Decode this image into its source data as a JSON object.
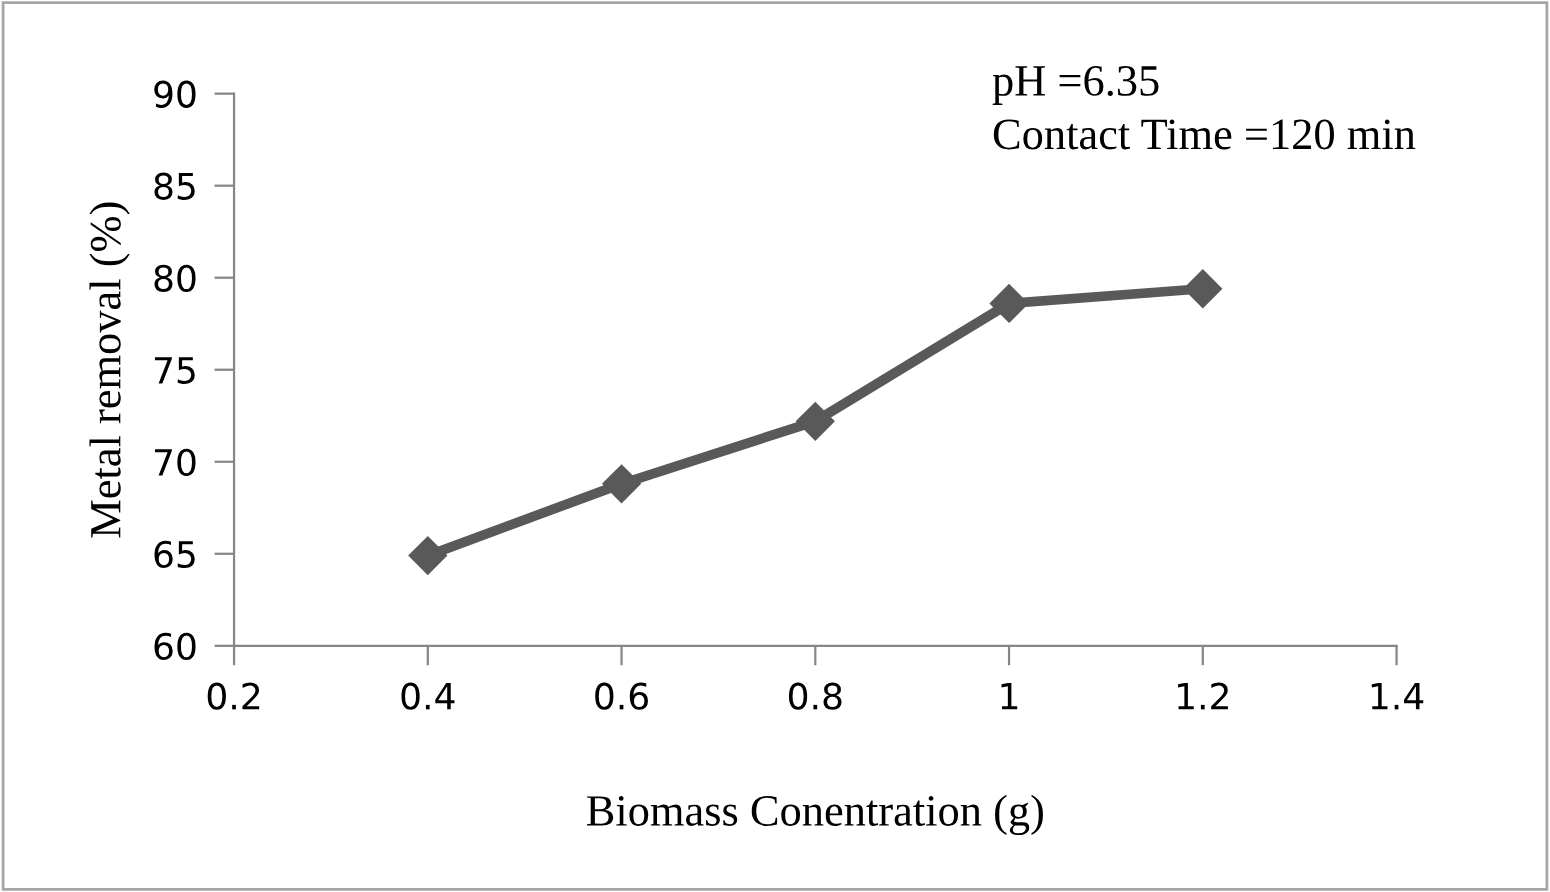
{
  "chart_data": {
    "type": "line",
    "xlabel": "Biomass Conentration (g)",
    "ylabel": "Metal removal (%)",
    "annotations": [
      "pH =6.35",
      "Contact Time =120 min"
    ],
    "x": [
      0.4,
      0.6,
      0.8,
      1.0,
      1.2
    ],
    "series": [
      {
        "color": "#595959",
        "values": [
          64.9,
          68.8,
          72.2,
          78.6,
          79.4
        ]
      }
    ],
    "xlim": [
      0.2,
      1.4
    ],
    "xticks": [
      0.2,
      0.4,
      0.6,
      0.8,
      {
        "value": 1.0,
        "label": "1"
      },
      1.2,
      1.4
    ],
    "ylim": [
      60,
      90
    ],
    "yticks": [
      60,
      65,
      70,
      75,
      80,
      85,
      90
    ],
    "grid": false,
    "legend": false,
    "marker": "diamond",
    "line_style": "solid"
  }
}
